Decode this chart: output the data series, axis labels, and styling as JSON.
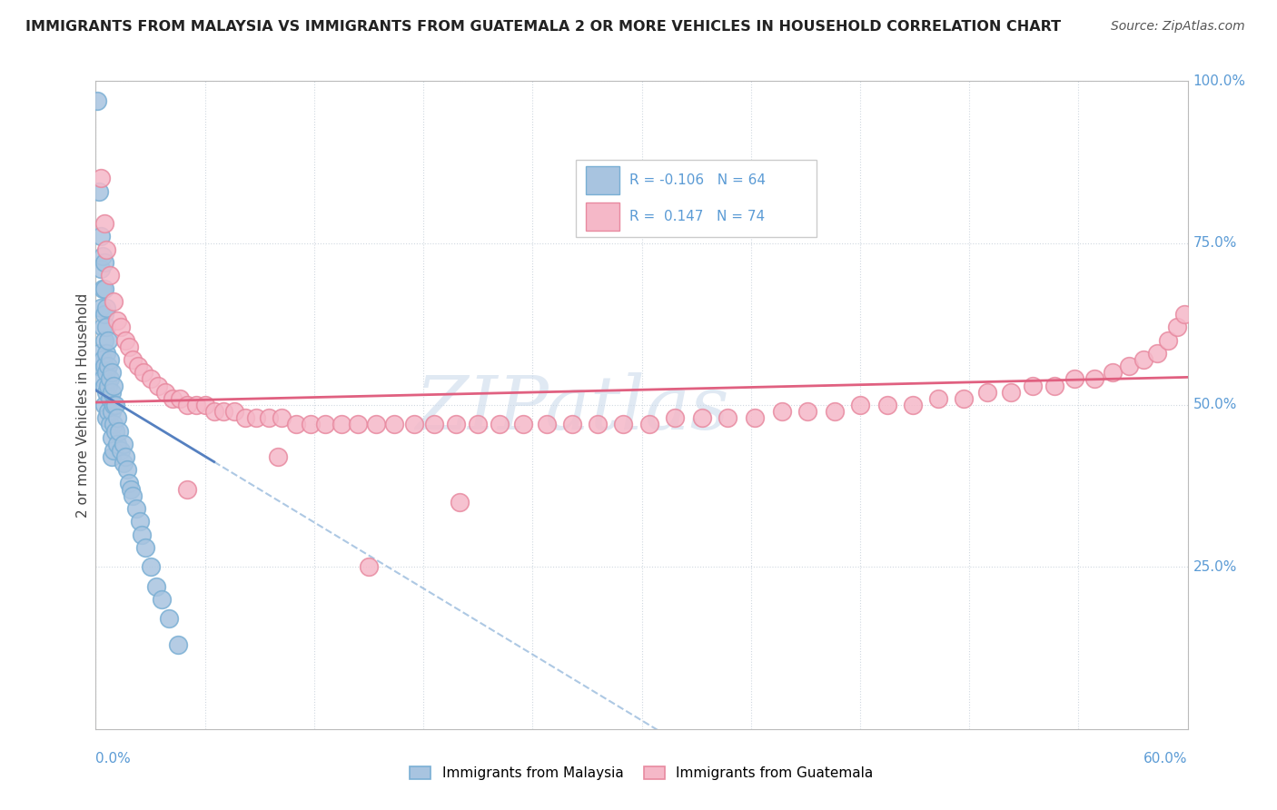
{
  "title": "IMMIGRANTS FROM MALAYSIA VS IMMIGRANTS FROM GUATEMALA 2 OR MORE VEHICLES IN HOUSEHOLD CORRELATION CHART",
  "source": "Source: ZipAtlas.com",
  "ylabel_label": "2 or more Vehicles in Household",
  "malaysia_color": "#a8c4e0",
  "malaysia_edge_color": "#7aafd4",
  "guatemala_color": "#f5b8c8",
  "guatemala_edge_color": "#e88aa0",
  "malaysia_line_color": "#5580c0",
  "malaysia_line_dash_color": "#99bbdd",
  "guatemala_line_color": "#e06080",
  "watermark_color": "#c8d8ea",
  "watermark_text": "ZIPatlas",
  "right_axis_color": "#5b9bd5",
  "background_color": "#ffffff",
  "xlim": [
    0.0,
    0.6
  ],
  "ylim": [
    0.0,
    1.0
  ],
  "malaysia_R": -0.106,
  "malaysia_N": 64,
  "guatemala_R": 0.147,
  "guatemala_N": 74,
  "malaysia_x": [
    0.001,
    0.001,
    0.002,
    0.002,
    0.003,
    0.003,
    0.003,
    0.004,
    0.004,
    0.004,
    0.004,
    0.004,
    0.005,
    0.005,
    0.005,
    0.005,
    0.005,
    0.005,
    0.005,
    0.006,
    0.006,
    0.006,
    0.006,
    0.006,
    0.006,
    0.007,
    0.007,
    0.007,
    0.007,
    0.008,
    0.008,
    0.008,
    0.008,
    0.009,
    0.009,
    0.009,
    0.009,
    0.009,
    0.01,
    0.01,
    0.01,
    0.01,
    0.011,
    0.011,
    0.012,
    0.012,
    0.013,
    0.014,
    0.015,
    0.015,
    0.016,
    0.017,
    0.018,
    0.019,
    0.02,
    0.022,
    0.024,
    0.025,
    0.027,
    0.03,
    0.033,
    0.036,
    0.04,
    0.045
  ],
  "malaysia_y": [
    0.97,
    0.56,
    0.83,
    0.58,
    0.76,
    0.71,
    0.65,
    0.73,
    0.68,
    0.62,
    0.57,
    0.54,
    0.72,
    0.68,
    0.64,
    0.6,
    0.56,
    0.53,
    0.5,
    0.65,
    0.62,
    0.58,
    0.55,
    0.52,
    0.48,
    0.6,
    0.56,
    0.53,
    0.49,
    0.57,
    0.54,
    0.51,
    0.47,
    0.55,
    0.52,
    0.49,
    0.45,
    0.42,
    0.53,
    0.5,
    0.47,
    0.43,
    0.5,
    0.46,
    0.48,
    0.44,
    0.46,
    0.43,
    0.44,
    0.41,
    0.42,
    0.4,
    0.38,
    0.37,
    0.36,
    0.34,
    0.32,
    0.3,
    0.28,
    0.25,
    0.22,
    0.2,
    0.17,
    0.13
  ],
  "guatemala_x": [
    0.003,
    0.005,
    0.006,
    0.008,
    0.01,
    0.012,
    0.014,
    0.016,
    0.018,
    0.02,
    0.023,
    0.026,
    0.03,
    0.034,
    0.038,
    0.042,
    0.046,
    0.05,
    0.055,
    0.06,
    0.065,
    0.07,
    0.076,
    0.082,
    0.088,
    0.095,
    0.102,
    0.11,
    0.118,
    0.126,
    0.135,
    0.144,
    0.154,
    0.164,
    0.175,
    0.186,
    0.198,
    0.21,
    0.222,
    0.235,
    0.248,
    0.262,
    0.276,
    0.29,
    0.304,
    0.318,
    0.333,
    0.347,
    0.362,
    0.377,
    0.391,
    0.406,
    0.42,
    0.435,
    0.449,
    0.463,
    0.477,
    0.49,
    0.503,
    0.515,
    0.527,
    0.538,
    0.549,
    0.559,
    0.568,
    0.576,
    0.583,
    0.589,
    0.594,
    0.598,
    0.05,
    0.1,
    0.15,
    0.2
  ],
  "guatemala_y": [
    0.85,
    0.78,
    0.74,
    0.7,
    0.66,
    0.63,
    0.62,
    0.6,
    0.59,
    0.57,
    0.56,
    0.55,
    0.54,
    0.53,
    0.52,
    0.51,
    0.51,
    0.5,
    0.5,
    0.5,
    0.49,
    0.49,
    0.49,
    0.48,
    0.48,
    0.48,
    0.48,
    0.47,
    0.47,
    0.47,
    0.47,
    0.47,
    0.47,
    0.47,
    0.47,
    0.47,
    0.47,
    0.47,
    0.47,
    0.47,
    0.47,
    0.47,
    0.47,
    0.47,
    0.47,
    0.48,
    0.48,
    0.48,
    0.48,
    0.49,
    0.49,
    0.49,
    0.5,
    0.5,
    0.5,
    0.51,
    0.51,
    0.52,
    0.52,
    0.53,
    0.53,
    0.54,
    0.54,
    0.55,
    0.56,
    0.57,
    0.58,
    0.6,
    0.62,
    0.64,
    0.37,
    0.42,
    0.25,
    0.35
  ]
}
